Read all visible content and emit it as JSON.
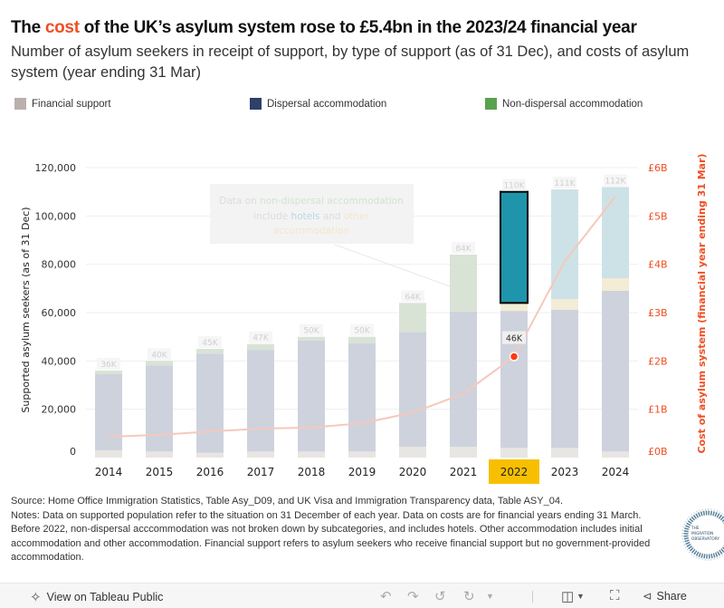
{
  "header": {
    "title_pre": "The ",
    "title_highlight": "cost",
    "title_post": " of the UK’s asylum system rose to £5.4bn in the 2023/24 financial year",
    "subtitle": "Number of asylum seekers in receipt of support, by type of support (as of 31 Dec), and costs of asylum system (year ending 31 Mar)"
  },
  "legend": [
    {
      "label": "Financial support",
      "color": "#bab0ac"
    },
    {
      "label": "Dispersal accommodation",
      "color": "#2e3f6b"
    },
    {
      "label": "Non-dispersal accommodation",
      "color": "#59a14f"
    }
  ],
  "annotation": {
    "part1": "Data on ",
    "part2": "non-dispersal accommodation",
    "part3": "include ",
    "part4": "hotels",
    "part5": " and ",
    "part6": "other",
    "part7": "accommodation"
  },
  "colors": {
    "financial": "#e8e6e3",
    "dispersal": "#ced2dd",
    "non_dispersal": "#d8e3d6",
    "other_accommodation": "#f3ecd6",
    "hotels": "#cde2e7",
    "hotels_highlight": "#1f95ab",
    "cost_line": "#f4c9bb",
    "cost_axis": "#f04e23",
    "selected_year_bg": "#f7bf00"
  },
  "chart_data": {
    "type": "bar",
    "title": "The cost of the UK’s asylum system rose to £5.4bn in the 2023/24 financial year",
    "categories": [
      "2014",
      "2015",
      "2016",
      "2017",
      "2018",
      "2019",
      "2020",
      "2021",
      "2022",
      "2023",
      "2024"
    ],
    "series": [
      {
        "name": "Financial support",
        "values": [
          3000,
          2500,
          2000,
          2500,
          2500,
          2500,
          4500,
          4500,
          4000,
          4000,
          2500
        ]
      },
      {
        "name": "Dispersal accommodation",
        "values": [
          31500,
          35700,
          41000,
          42100,
          45900,
          44800,
          47500,
          56000,
          56700,
          57200,
          66500
        ]
      },
      {
        "name": "Non-dispersal accommodation",
        "values": [
          1500,
          1800,
          2000,
          2400,
          1600,
          2700,
          12000,
          23500,
          0,
          0,
          0
        ]
      },
      {
        "name": "Other accommodation",
        "values": [
          0,
          0,
          0,
          0,
          0,
          0,
          0,
          0,
          3300,
          4400,
          5200
        ]
      },
      {
        "name": "Hotels",
        "values": [
          0,
          0,
          0,
          0,
          0,
          0,
          0,
          0,
          46000,
          45400,
          37800
        ]
      }
    ],
    "totals_labels": [
      "36K",
      "40K",
      "45K",
      "47K",
      "50K",
      "50K",
      "64K",
      "84K",
      "110K",
      "111K",
      "112K"
    ],
    "line_series": {
      "name": "Cost of asylum system (financial year ending 31 Mar)",
      "unit": "£B",
      "values": [
        0.43,
        0.47,
        0.54,
        0.6,
        0.62,
        0.71,
        0.93,
        1.32,
        2.09,
        4.06,
        5.4
      ]
    },
    "highlighted": {
      "category": "2022",
      "series": "Hotels",
      "label": "46K"
    },
    "ylabel": "Supported asylum seekers (as of 31 Dec)",
    "ylim": [
      0,
      120000
    ],
    "yticks": [
      "0",
      "20,000",
      "40,000",
      "60,000",
      "80,000",
      "100,000",
      "120,000"
    ],
    "y2label": "Cost of asylum system (financial year ending 31 Mar)",
    "y2lim": [
      0,
      6
    ],
    "y2ticks": [
      "£0B",
      "£1B",
      "£2B",
      "£3B",
      "£4B",
      "£5B",
      "£6B"
    ],
    "grid": true,
    "legend_position": "top"
  },
  "footer": {
    "source": "Source: Home Office Immigration Statistics, Table Asy_D09, and UK Visa and Immigration Transparency data, Table ASY_04.",
    "notes": "Notes: Data on supported population refer to the situation on 31 December of each year. Data on costs are for financial years ending 31 March. Before 2022, non-dispersal acccommodation was not broken down by subcategories, and includes hotels. Other accommodation includes initial accommodation and other accommodation. Financial support refers to asylum seekers who receive financial support but no government-provided accommodation.",
    "logo_text": [
      "THE",
      "MIGRATION",
      "OBSERVATORY"
    ]
  },
  "toolbar": {
    "view_label": "View on Tableau Public",
    "share_label": "Share"
  }
}
